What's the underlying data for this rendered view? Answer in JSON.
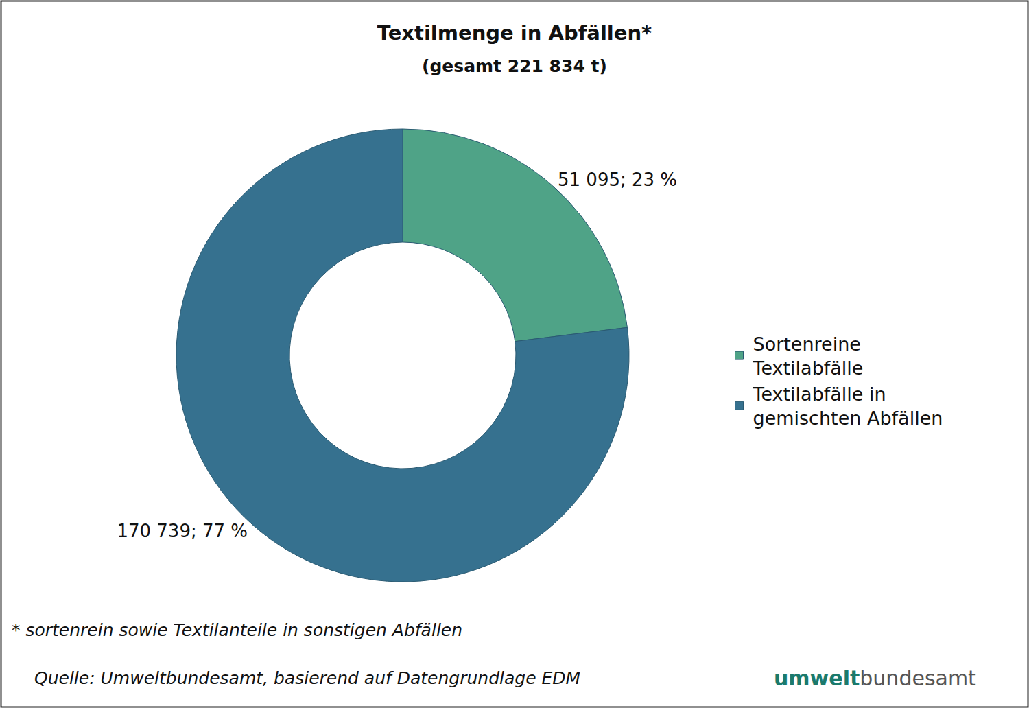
{
  "chart_data": {
    "type": "pie",
    "title": "Textilmenge in Abfällen*",
    "subtitle": "(gesamt 221 834 t)",
    "categories": [
      "Sortenreine Textilabfälle",
      "Textilabfälle in gemischten Abfällen"
    ],
    "values": [
      51095,
      170739
    ],
    "value_labels": [
      "51 095; 23 %",
      "170 739; 77 %"
    ],
    "colors": [
      "#4fa387",
      "#36718f"
    ],
    "data_labels": true,
    "legend": "right",
    "annotations": [
      "* sortenrein sowie Textilanteile in sonstigen Abfällen",
      "Quelle: Umweltbundesamt, basierend auf Datengrundlage EDM"
    ],
    "logo": [
      "umwelt",
      "bundesamt"
    ]
  }
}
